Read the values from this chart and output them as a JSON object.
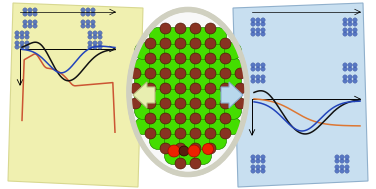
{
  "bg_color": "#ffffff",
  "left_panel_color": "#f0f0b0",
  "left_panel_edge": "#d8d890",
  "right_panel_color": "#c8dff0",
  "right_panel_edge": "#90b0cc",
  "oval_bg": "#f8f8f8",
  "oval_border": "#d0d0c0",
  "green_ball": "#44dd00",
  "green_edge": "#228800",
  "brown_ball": "#883322",
  "brown_edge": "#441100",
  "red_ball": "#ee2200",
  "red_edge": "#aa0000",
  "dark_brown_ball": "#5a2010",
  "left_arrow_face": "#e8eeb0",
  "left_arrow_edge": "#b8be80",
  "right_arrow_face": "#b8d8ec",
  "right_arrow_edge": "#88aacc",
  "curve_red": "#cc5533",
  "curve_black": "#111111",
  "curve_blue": "#2244bb",
  "curve_orange": "#dd7733",
  "cluster_color": "#4466bb"
}
